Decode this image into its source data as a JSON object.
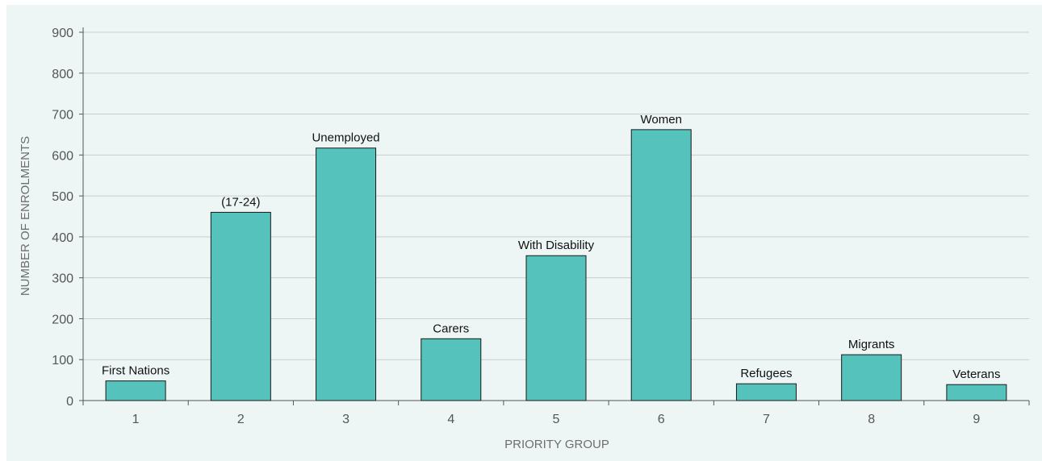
{
  "chart_data": {
    "type": "bar",
    "categories": [
      "1",
      "2",
      "3",
      "4",
      "5",
      "6",
      "7",
      "8",
      "9"
    ],
    "values": [
      48,
      460,
      617,
      151,
      354,
      662,
      41,
      112,
      39
    ],
    "data_labels": [
      "First Nations",
      "(17-24)",
      "Unemployed",
      "Carers",
      "With Disability",
      "Women",
      "Refugees",
      "Migrants",
      "Veterans"
    ],
    "xlabel": "PRIORITY GROUP",
    "ylabel": "NUMBER OF ENROLMENTS",
    "ylim": [
      0,
      900
    ],
    "yticks": [
      0,
      100,
      200,
      300,
      400,
      500,
      600,
      700,
      800,
      900
    ],
    "grid": true,
    "colors": {
      "bar": "#55c2bc",
      "bar_edge": "#1a1a1a",
      "grid": "#c7cfcf",
      "panel": "#edf6f5"
    }
  }
}
